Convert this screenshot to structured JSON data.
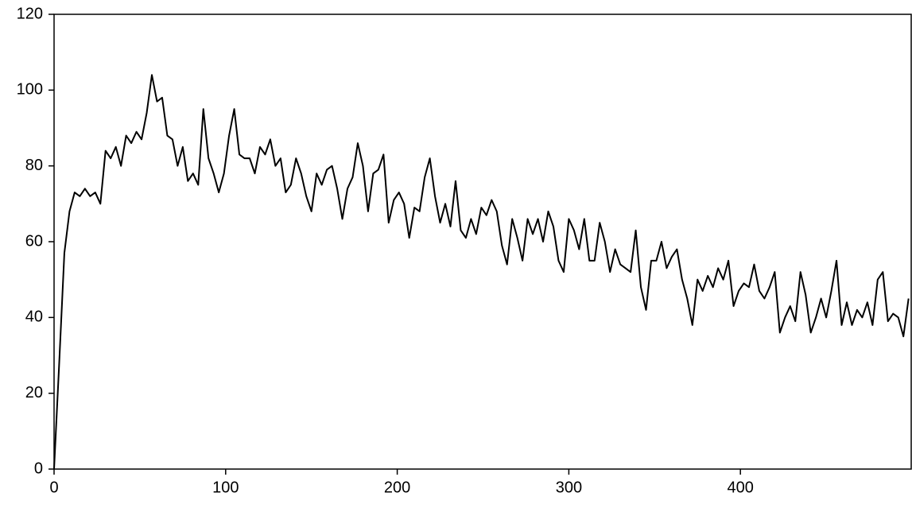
{
  "chart_data": {
    "type": "line",
    "x": [
      0,
      3,
      6,
      9,
      12,
      15,
      18,
      21,
      24,
      27,
      30,
      33,
      36,
      39,
      42,
      45,
      48,
      51,
      54,
      57,
      60,
      63,
      66,
      69,
      72,
      75,
      78,
      81,
      84,
      87,
      90,
      93,
      96,
      99,
      102,
      105,
      108,
      111,
      114,
      117,
      120,
      123,
      126,
      129,
      132,
      135,
      138,
      141,
      144,
      147,
      150,
      153,
      156,
      159,
      162,
      165,
      168,
      171,
      174,
      177,
      180,
      183,
      186,
      189,
      192,
      195,
      198,
      201,
      204,
      207,
      210,
      213,
      216,
      219,
      222,
      225,
      228,
      231,
      234,
      237,
      240,
      243,
      246,
      249,
      252,
      255,
      258,
      261,
      264,
      267,
      270,
      273,
      276,
      279,
      282,
      285,
      288,
      291,
      294,
      297,
      300,
      303,
      306,
      309,
      312,
      315,
      318,
      321,
      324,
      327,
      330,
      333,
      336,
      339,
      342,
      345,
      348,
      351,
      354,
      357,
      360,
      363,
      366,
      369,
      372,
      375,
      378,
      381,
      384,
      387,
      390,
      393,
      396,
      399,
      402,
      405,
      408,
      411,
      414,
      417,
      420,
      423,
      426,
      429,
      432,
      435,
      438,
      441,
      444,
      447,
      450,
      453,
      456,
      459,
      462,
      465,
      468,
      471,
      474,
      477,
      480,
      483,
      486,
      489,
      492,
      495,
      498
    ],
    "series": [
      {
        "color": "#000000",
        "values": [
          0,
          28,
          57,
          68,
          73,
          72,
          74,
          72,
          73,
          70,
          84,
          82,
          85,
          80,
          88,
          86,
          89,
          87,
          94,
          104,
          97,
          98,
          88,
          87,
          80,
          85,
          76,
          78,
          75,
          95,
          82,
          78,
          73,
          78,
          88,
          95,
          83,
          82,
          82,
          78,
          85,
          83,
          87,
          80,
          82,
          73,
          75,
          82,
          78,
          72,
          68,
          78,
          75,
          79,
          80,
          74,
          66,
          74,
          77,
          86,
          80,
          68,
          78,
          79,
          83,
          65,
          71,
          73,
          70,
          61,
          69,
          68,
          77,
          82,
          72,
          65,
          70,
          64,
          76,
          63,
          61,
          66,
          62,
          69,
          67,
          71,
          68,
          59,
          54,
          66,
          61,
          55,
          66,
          62,
          66,
          60,
          68,
          64,
          55,
          52,
          66,
          63,
          58,
          66,
          55,
          55,
          65,
          60,
          52,
          58,
          54,
          53,
          52,
          63,
          48,
          42,
          55,
          55,
          60,
          53,
          56,
          58,
          50,
          45,
          38,
          50,
          47,
          51,
          48,
          53,
          50,
          55,
          43,
          47,
          49,
          48,
          54,
          47,
          45,
          48,
          52,
          36,
          40,
          43,
          39,
          52,
          46,
          36,
          40,
          45,
          40,
          47,
          55,
          38,
          44,
          38,
          42,
          40,
          44,
          38,
          50,
          52,
          39,
          41,
          40,
          35,
          45
        ]
      }
    ],
    "xlim": [
      0,
      500
    ],
    "ylim": [
      0,
      120
    ],
    "xticks": [
      0,
      100,
      200,
      300,
      400
    ],
    "yticks": [
      0,
      20,
      40,
      60,
      80,
      100,
      120
    ]
  }
}
